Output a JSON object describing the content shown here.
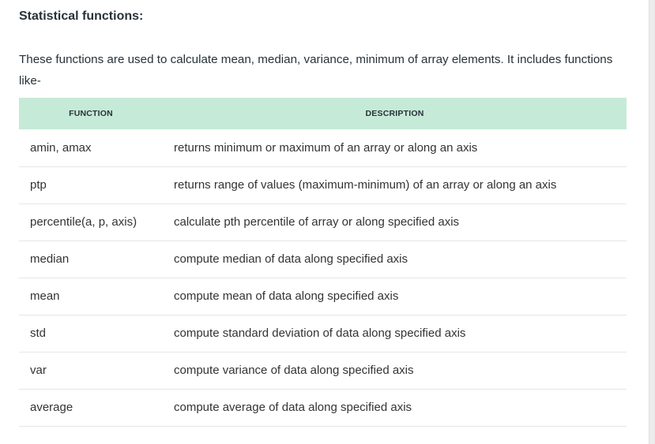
{
  "section": {
    "heading": "Statistical functions:",
    "intro": "These functions are used to calculate mean, median, variance, minimum of array elements. It includes functions like-"
  },
  "table": {
    "headers": {
      "function": "FUNCTION",
      "description": "DESCRIPTION"
    },
    "rows": [
      {
        "function": "amin, amax",
        "description": "returns minimum or maximum of an array or along an axis"
      },
      {
        "function": "ptp",
        "description": "returns range of values (maximum-minimum) of an array or along an axis"
      },
      {
        "function": "percentile(a, p, axis)",
        "description": "calculate pth percentile of array or along specified axis"
      },
      {
        "function": "median",
        "description": "compute median of data along specified axis"
      },
      {
        "function": "mean",
        "description": "compute mean of data along specified axis"
      },
      {
        "function": "std",
        "description": "compute standard deviation of data along specified axis"
      },
      {
        "function": "var",
        "description": "compute variance of data along specified axis"
      },
      {
        "function": "average",
        "description": "compute average of data along specified axis"
      }
    ]
  },
  "colors": {
    "header_background": "#c6ead8",
    "text": "#273239",
    "row_divider": "#e6e6e6"
  }
}
